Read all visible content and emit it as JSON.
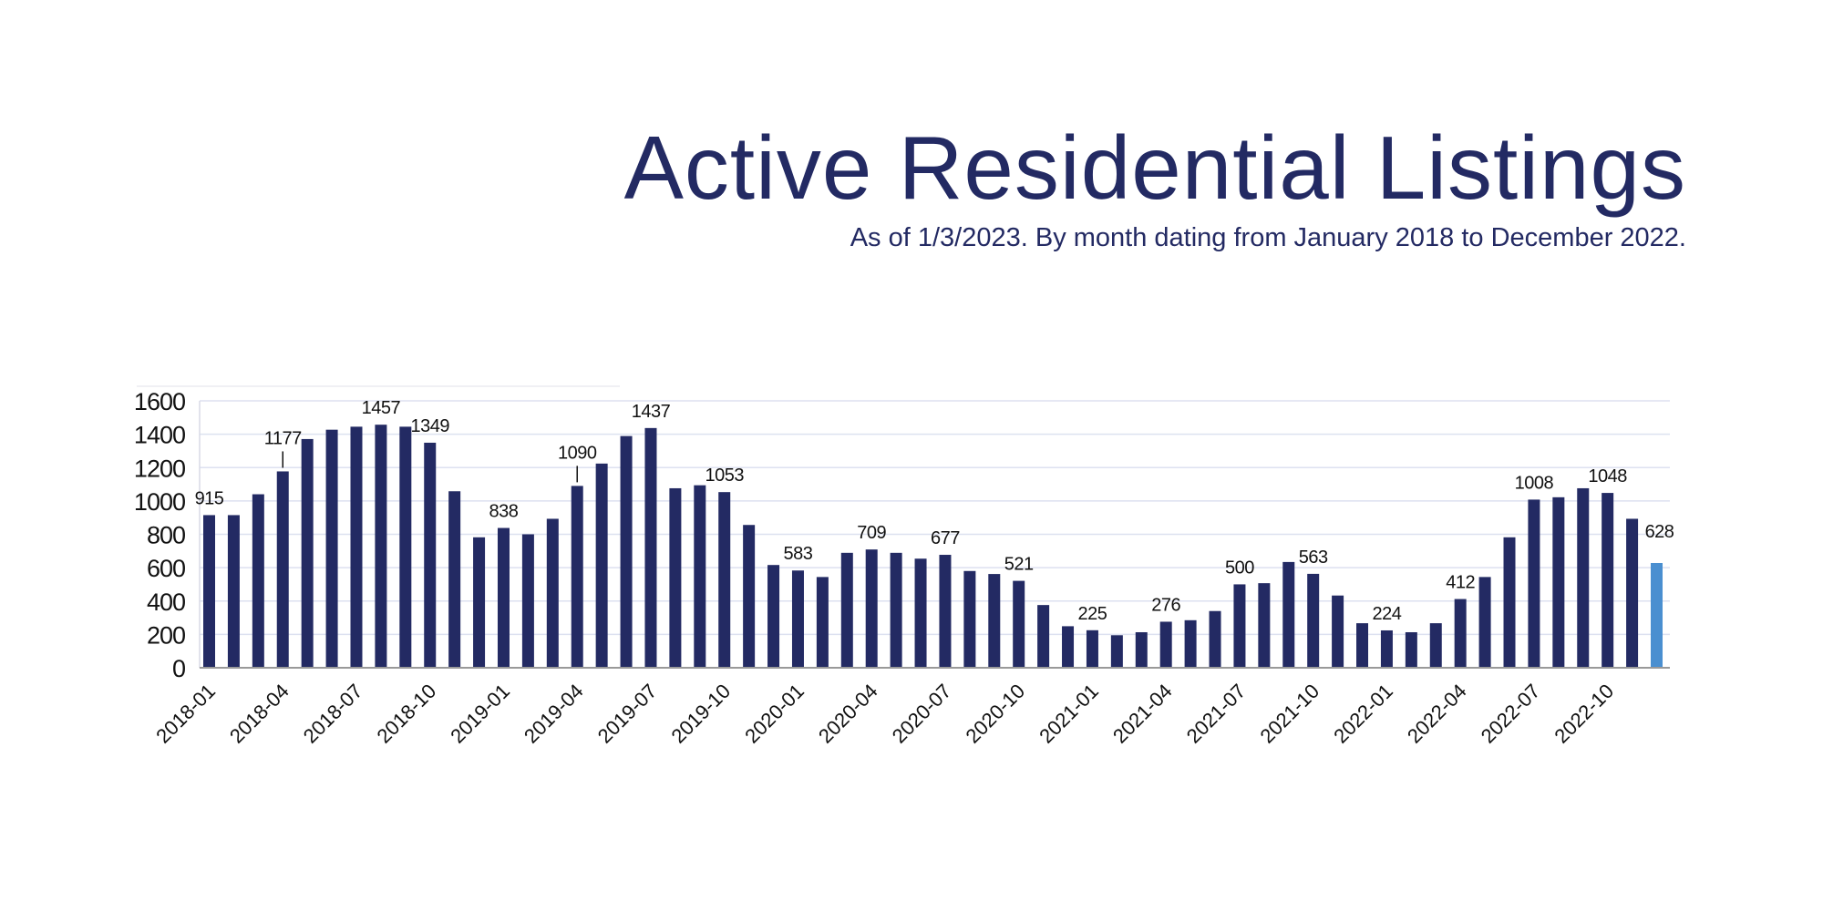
{
  "title": "Active Residential Listings",
  "subtitle": "As of 1/3/2023. By month dating from January 2018 to December 2022.",
  "colors": {
    "bar": "#232a63",
    "highlight_bar": "#4a8fd0",
    "grid": "#dde1f0",
    "axis": "#999999",
    "text": "#232a63"
  },
  "chart_data": {
    "type": "bar",
    "title": "Active Residential Listings",
    "subtitle": "As of 1/3/2023. By month dating from January 2018 to December 2022.",
    "xlabel": "",
    "ylabel": "",
    "ylim": [
      0,
      1600
    ],
    "yticks": [
      0,
      200,
      400,
      600,
      800,
      1000,
      1200,
      1400,
      1600
    ],
    "grid": true,
    "legend": "none",
    "categories": [
      "2018-01",
      "2018-02",
      "2018-03",
      "2018-04",
      "2018-05",
      "2018-06",
      "2018-07",
      "2018-08",
      "2018-09",
      "2018-10",
      "2018-11",
      "2018-12",
      "2019-01",
      "2019-02",
      "2019-03",
      "2019-04",
      "2019-05",
      "2019-06",
      "2019-07",
      "2019-08",
      "2019-09",
      "2019-10",
      "2019-11",
      "2019-12",
      "2020-01",
      "2020-02",
      "2020-03",
      "2020-04",
      "2020-05",
      "2020-06",
      "2020-07",
      "2020-08",
      "2020-09",
      "2020-10",
      "2020-11",
      "2020-12",
      "2021-01",
      "2021-02",
      "2021-03",
      "2021-04",
      "2021-05",
      "2021-06",
      "2021-07",
      "2021-08",
      "2021-09",
      "2021-10",
      "2021-11",
      "2021-12",
      "2022-01",
      "2022-02",
      "2022-03",
      "2022-04",
      "2022-05",
      "2022-06",
      "2022-07",
      "2022-08",
      "2022-09",
      "2022-10",
      "2022-11",
      "2022-12"
    ],
    "xtick_labels": [
      "2018-01",
      "2018-04",
      "2018-07",
      "2018-10",
      "2019-01",
      "2019-04",
      "2019-07",
      "2019-10",
      "2020-01",
      "2020-04",
      "2020-07",
      "2020-10",
      "2021-01",
      "2021-04",
      "2021-07",
      "2021-10",
      "2022-01",
      "2022-04",
      "2022-07",
      "2022-10"
    ],
    "values": [
      915,
      915,
      1040,
      1177,
      1371,
      1427,
      1445,
      1457,
      1445,
      1349,
      1058,
      782,
      838,
      800,
      893,
      1090,
      1224,
      1389,
      1437,
      1076,
      1094,
      1053,
      856,
      616,
      583,
      544,
      689,
      709,
      689,
      654,
      677,
      580,
      562,
      521,
      376,
      249,
      225,
      195,
      213,
      276,
      285,
      340,
      500,
      507,
      634,
      563,
      433,
      267,
      224,
      213,
      267,
      412,
      544,
      782,
      1008,
      1022,
      1076,
      1048,
      893,
      628
    ],
    "data_labels": [
      {
        "category": "2018-01",
        "text": "915"
      },
      {
        "category": "2018-04",
        "text": "1177",
        "leader": true
      },
      {
        "category": "2018-08",
        "text": "1457"
      },
      {
        "category": "2018-10",
        "text": "1349"
      },
      {
        "category": "2019-01",
        "text": "838"
      },
      {
        "category": "2019-04",
        "text": "1090",
        "leader": true
      },
      {
        "category": "2019-07",
        "text": "1437"
      },
      {
        "category": "2019-10",
        "text": "1053"
      },
      {
        "category": "2020-01",
        "text": "583"
      },
      {
        "category": "2020-04",
        "text": "709"
      },
      {
        "category": "2020-07",
        "text": "677"
      },
      {
        "category": "2020-10",
        "text": "521"
      },
      {
        "category": "2021-01",
        "text": "225"
      },
      {
        "category": "2021-04",
        "text": "276"
      },
      {
        "category": "2021-07",
        "text": "500"
      },
      {
        "category": "2021-10",
        "text": "563"
      },
      {
        "category": "2022-01",
        "text": "224"
      },
      {
        "category": "2022-04",
        "text": "412"
      },
      {
        "category": "2022-07",
        "text": "1008"
      },
      {
        "category": "2022-10",
        "text": "1048"
      },
      {
        "category": "2022-12",
        "text": "628"
      }
    ],
    "highlight_category": "2022-12"
  }
}
